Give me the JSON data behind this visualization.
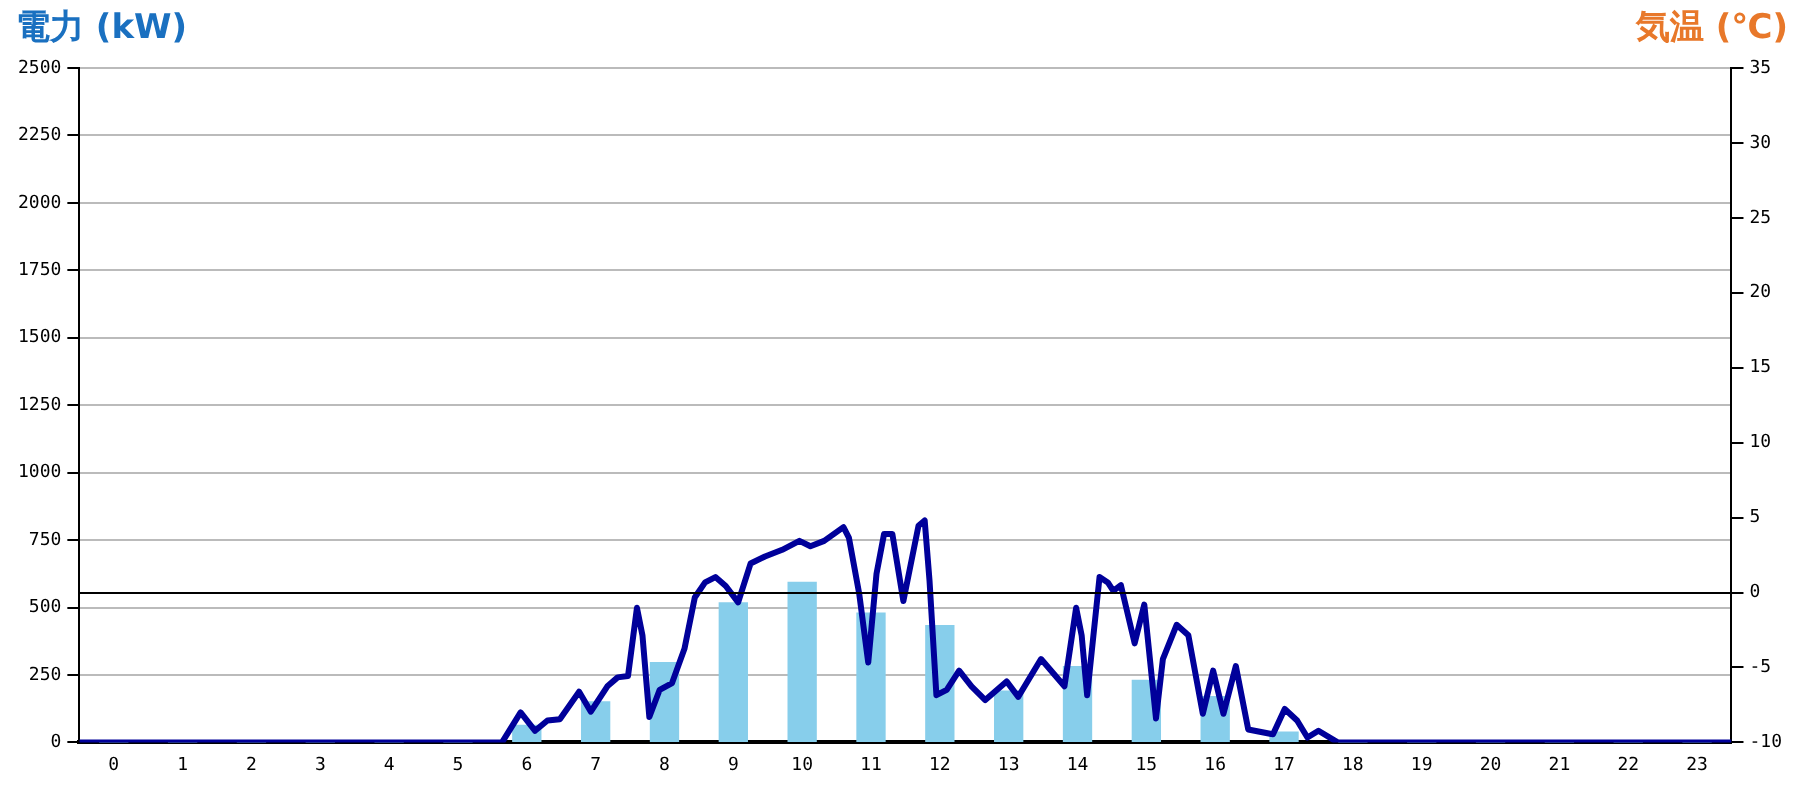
{
  "chart_data": {
    "type": "bar",
    "ylabel": "電力 (kW)",
    "y2label": "気温 (℃)",
    "x": [
      0,
      1,
      2,
      3,
      4,
      5,
      6,
      7,
      8,
      9,
      10,
      11,
      12,
      13,
      14,
      15,
      16,
      17,
      18,
      19,
      20,
      21,
      22,
      23
    ],
    "xlim": [
      -0.5,
      23.5
    ],
    "xticks": [
      0,
      1,
      2,
      3,
      4,
      5,
      6,
      7,
      8,
      9,
      10,
      11,
      12,
      13,
      14,
      15,
      16,
      17,
      18,
      19,
      20,
      21,
      22,
      23
    ],
    "ylim": [
      0,
      2500
    ],
    "yticks": [
      0,
      250,
      500,
      750,
      1000,
      1250,
      1500,
      1750,
      2000,
      2250,
      2500
    ],
    "y2lim": [
      -10,
      35
    ],
    "y2ticks": [
      -10,
      -5,
      0,
      5,
      10,
      15,
      20,
      25,
      30,
      35
    ],
    "grid": "y",
    "series": [
      {
        "color": "#87ceeb",
        "values": [
          0,
          0,
          0,
          0,
          0,
          0,
          63,
          150,
          296,
          517,
          593,
          479,
          433,
          190,
          281,
          230,
          170,
          38,
          0,
          0,
          0,
          0,
          0,
          0
        ]
      },
      {
        "type": "line",
        "color": "#00009a",
        "x": [
          -0.5,
          5.64,
          5.91,
          6.12,
          6.3,
          6.48,
          6.76,
          6.93,
          7.17,
          7.32,
          7.47,
          7.6,
          7.68,
          7.78,
          7.93,
          8.11,
          8.29,
          8.44,
          8.59,
          8.74,
          8.89,
          9.07,
          9.25,
          9.46,
          9.71,
          9.96,
          10.12,
          10.32,
          10.6,
          10.68,
          10.83,
          10.96,
          11.08,
          11.19,
          11.31,
          11.47,
          11.69,
          11.78,
          11.85,
          11.95,
          12.1,
          12.28,
          12.46,
          12.66,
          12.97,
          13.14,
          13.47,
          13.81,
          13.98,
          14.06,
          14.14,
          14.32,
          14.44,
          14.52,
          14.63,
          14.83,
          14.97,
          15.14,
          15.24,
          15.44,
          15.61,
          15.82,
          15.97,
          16.12,
          16.3,
          16.48,
          16.84,
          17.01,
          17.19,
          17.34,
          17.5,
          17.78,
          23.5
        ],
        "values": [
          0,
          0,
          111,
          43,
          81,
          86,
          188,
          114,
          208,
          241,
          246,
          499,
          397,
          94,
          195,
          220,
          347,
          537,
          593,
          613,
          580,
          519,
          663,
          689,
          714,
          747,
          727,
          747,
          798,
          758,
          549,
          296,
          625,
          773,
          773,
          524,
          803,
          823,
          600,
          175,
          195,
          266,
          208,
          157,
          226,
          169,
          309,
          208,
          499,
          397,
          175,
          613,
          593,
          562,
          583,
          367,
          511,
          89,
          309,
          436,
          397,
          106,
          266,
          106,
          283,
          48,
          30,
          124,
          81,
          18,
          43,
          0,
          0
        ]
      }
    ],
    "ref_lines": [
      {
        "axis": "y2",
        "value": 0,
        "color": "#000000"
      }
    ]
  }
}
